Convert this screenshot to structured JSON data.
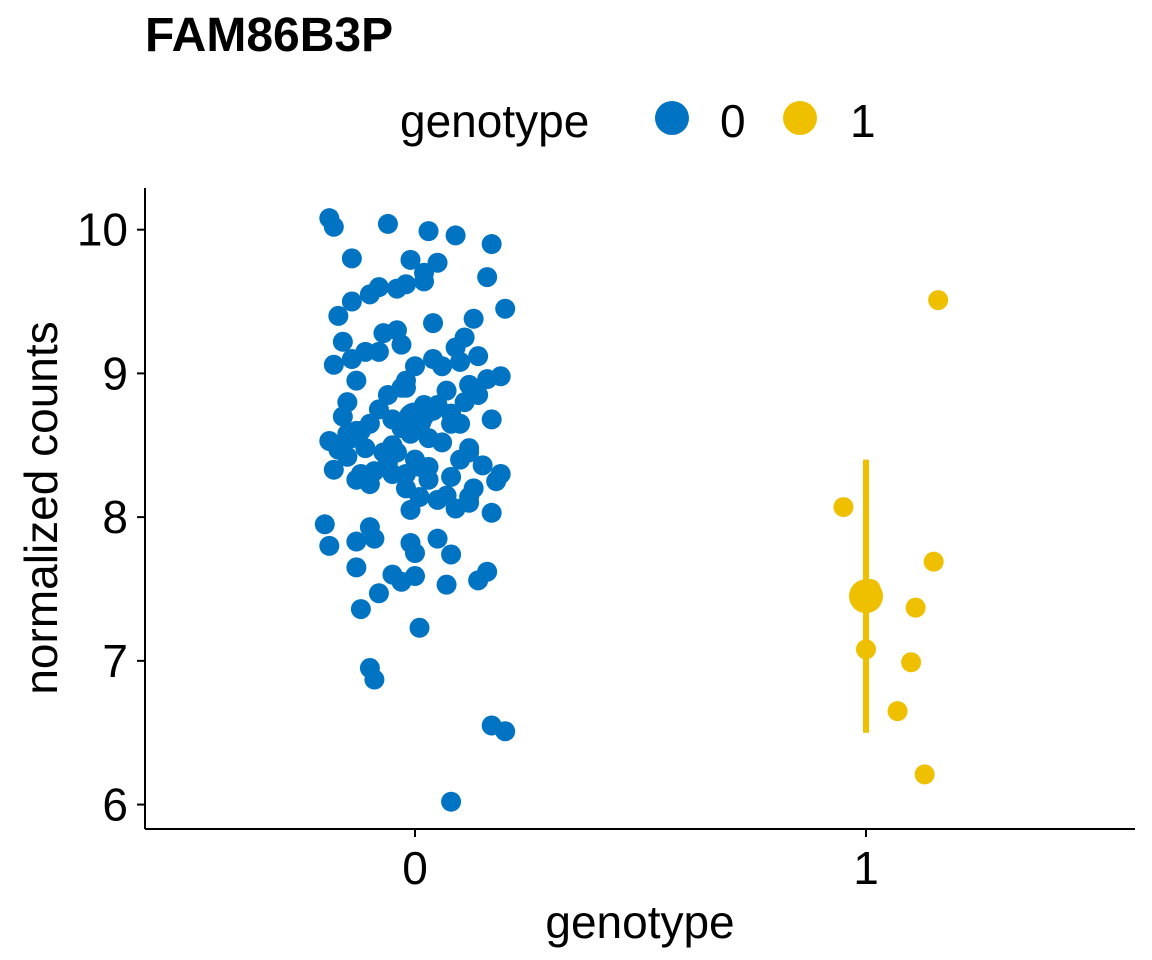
{
  "chart_data": {
    "type": "scatter",
    "title": "FAM86B3P",
    "xlabel": "genotype",
    "ylabel": "normalized counts",
    "categories": [
      "0",
      "1"
    ],
    "ylim": [
      5.83,
      10.29
    ],
    "y_ticks": [
      "6",
      "7",
      "8",
      "9",
      "10"
    ],
    "grid": false,
    "legend": {
      "title": "genotype",
      "placement": "top",
      "entries": [
        "0",
        "1"
      ]
    },
    "series": [
      {
        "name": "0",
        "color": "#0073C2",
        "x": [
          -0.19,
          -0.18,
          -0.06,
          0.03,
          0.09,
          0.17,
          -0.14,
          -0.01,
          0.02,
          0.05,
          0.16,
          -0.14,
          -0.1,
          -0.08,
          -0.04,
          -0.02,
          0.02,
          -0.17,
          -0.16,
          -0.04,
          0.04,
          0.11,
          0.13,
          0.2,
          -0.18,
          -0.14,
          -0.13,
          -0.08,
          -0.03,
          0.0,
          0.04,
          0.1,
          0.14,
          -0.16,
          -0.15,
          -0.1,
          -0.06,
          -0.02,
          0.02,
          0.07,
          0.12,
          0.16,
          0.19,
          -0.14,
          -0.13,
          -0.11,
          -0.05,
          -0.03,
          -0.01,
          0.02,
          0.06,
          0.08,
          0.12,
          0.17,
          -0.15,
          -0.12,
          -0.09,
          -0.06,
          -0.04,
          0.0,
          0.03,
          0.08,
          0.1,
          0.15,
          0.19,
          -0.19,
          -0.17,
          -0.12,
          -0.08,
          -0.05,
          0.0,
          0.04,
          0.08,
          0.11,
          0.14,
          -0.18,
          -0.13,
          -0.1,
          -0.05,
          -0.02,
          0.01,
          0.05,
          0.09,
          0.13,
          -0.15,
          -0.07,
          -0.01,
          0.03,
          0.12,
          0.18,
          -0.02,
          0.01,
          0.07,
          0.12,
          0.17,
          -0.2,
          -0.19,
          -0.13,
          -0.1,
          -0.01,
          0.0,
          0.05,
          0.08,
          0.16,
          -0.13,
          -0.09,
          -0.05,
          -0.03,
          0.0,
          0.07,
          0.14,
          -0.12,
          -0.08,
          0.01,
          -0.1,
          -0.09,
          0.17,
          0.2,
          0.08,
          -0.02,
          0.0,
          0.03,
          0.05,
          0.1,
          0.12,
          -0.11,
          -0.07,
          -0.03,
          0.06,
          0.09
        ],
        "y": [
          10.08,
          10.02,
          10.04,
          9.99,
          9.96,
          9.9,
          9.8,
          9.79,
          9.7,
          9.77,
          9.67,
          9.5,
          9.55,
          9.6,
          9.59,
          9.62,
          9.64,
          9.4,
          9.22,
          9.3,
          9.35,
          9.25,
          9.38,
          9.45,
          9.06,
          9.1,
          8.95,
          9.15,
          9.2,
          9.05,
          9.1,
          9.08,
          9.12,
          8.7,
          8.8,
          8.65,
          8.85,
          8.9,
          8.78,
          8.88,
          8.92,
          8.96,
          8.98,
          8.55,
          8.6,
          8.48,
          8.5,
          8.62,
          8.58,
          8.7,
          8.52,
          8.65,
          8.45,
          8.68,
          8.42,
          8.3,
          8.32,
          8.38,
          8.45,
          8.4,
          8.35,
          8.28,
          8.4,
          8.36,
          8.3,
          8.53,
          8.47,
          8.6,
          8.75,
          8.68,
          8.72,
          8.74,
          8.72,
          8.8,
          8.85,
          8.33,
          8.26,
          8.23,
          8.3,
          8.2,
          8.14,
          8.12,
          8.06,
          8.2,
          8.58,
          8.45,
          8.05,
          8.26,
          8.14,
          8.25,
          8.3,
          8.35,
          8.15,
          8.1,
          8.03,
          7.95,
          7.8,
          7.83,
          7.93,
          7.82,
          7.75,
          7.85,
          7.74,
          7.62,
          7.65,
          7.85,
          7.6,
          7.55,
          7.59,
          7.53,
          7.56,
          7.36,
          7.47,
          7.23,
          6.95,
          6.87,
          6.55,
          6.51,
          6.02,
          8.95,
          8.62,
          8.55,
          8.78,
          8.65,
          8.48,
          9.15,
          9.28,
          8.9,
          9.05,
          9.18
        ],
        "summary": {
          "mean": 8.68
        }
      },
      {
        "name": "1",
        "color": "#EFC000",
        "x": [
          0.16,
          -0.05,
          0.15,
          0.01,
          0.11,
          0.0,
          0.1,
          0.07,
          0.13
        ],
        "y": [
          9.51,
          8.07,
          7.69,
          7.5,
          7.37,
          7.08,
          6.99,
          6.65,
          6.21
        ],
        "summary": {
          "mean": 7.45,
          "error_low": 6.5,
          "error_high": 8.4
        }
      }
    ]
  }
}
